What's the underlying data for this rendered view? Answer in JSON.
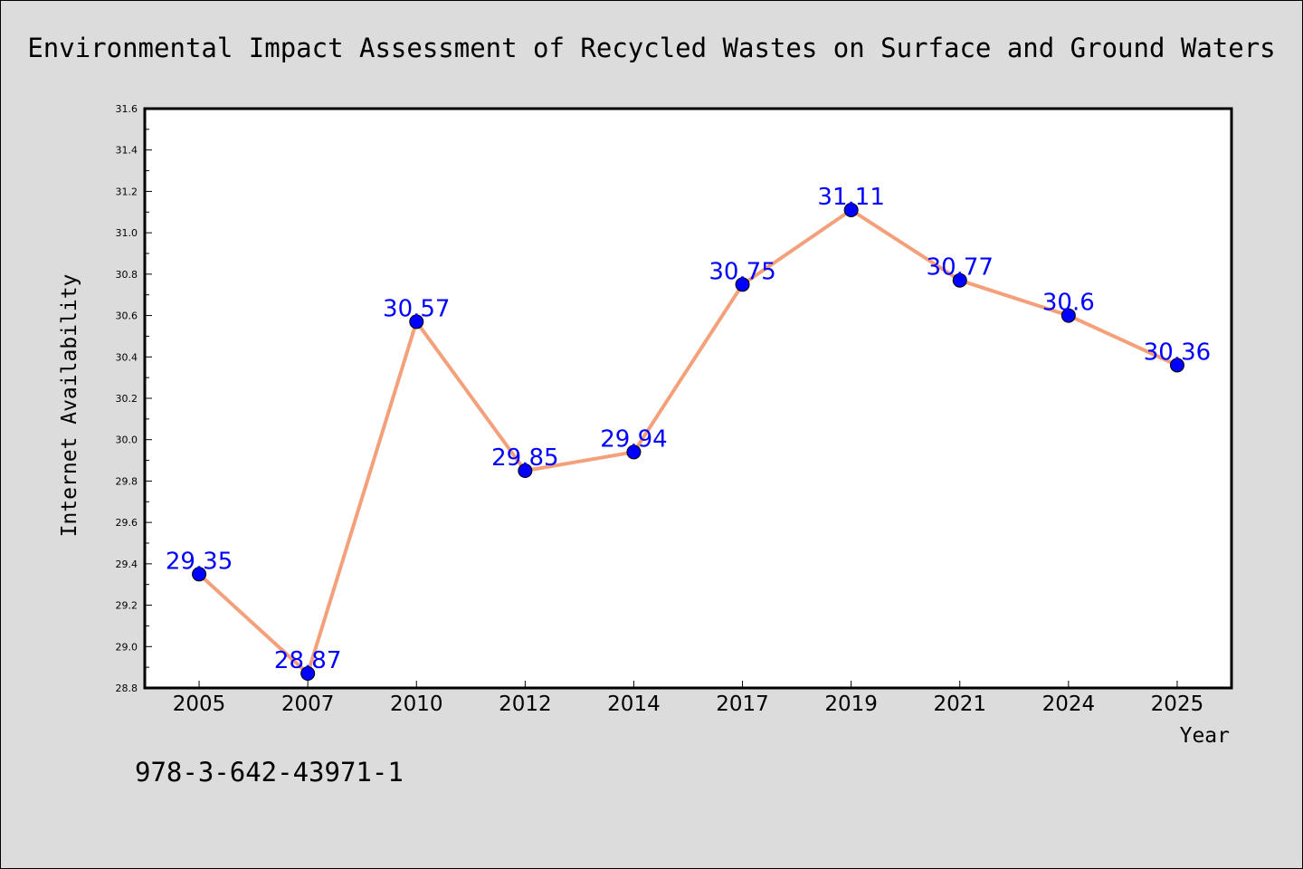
{
  "chart_data": {
    "type": "line",
    "title": "Environmental Impact Assessment of Recycled Wastes on Surface and Ground Waters",
    "xlabel": "Year",
    "ylabel": "Internet Availability",
    "categories": [
      "2005",
      "2007",
      "2010",
      "2012",
      "2014",
      "2017",
      "2019",
      "2021",
      "2024",
      "2025"
    ],
    "values": [
      29.35,
      28.87,
      30.57,
      29.85,
      29.94,
      30.75,
      31.11,
      30.77,
      30.6,
      30.36
    ],
    "data_labels": [
      "29.35",
      "28.87",
      "30.57",
      "29.85",
      "29.94",
      "30.75",
      "31.11",
      "30.77",
      "30.6",
      "30.36"
    ],
    "ylim": [
      28.8,
      31.6
    ],
    "yticks": [
      "28.8",
      "29.0",
      "29.2",
      "29.4",
      "29.6",
      "29.8",
      "30.0",
      "30.2",
      "30.4",
      "30.6",
      "30.8",
      "31.0",
      "31.2",
      "31.4",
      "31.6"
    ],
    "grid": false,
    "legend": "none",
    "line_color": "#f4a07a",
    "marker_color": "#0000ff",
    "label_color": "#0000ff",
    "background_color": "#dcdcdc",
    "plot_background_color": "#ffffff"
  },
  "footer": {
    "isbn": "978-3-642-43971-1"
  }
}
